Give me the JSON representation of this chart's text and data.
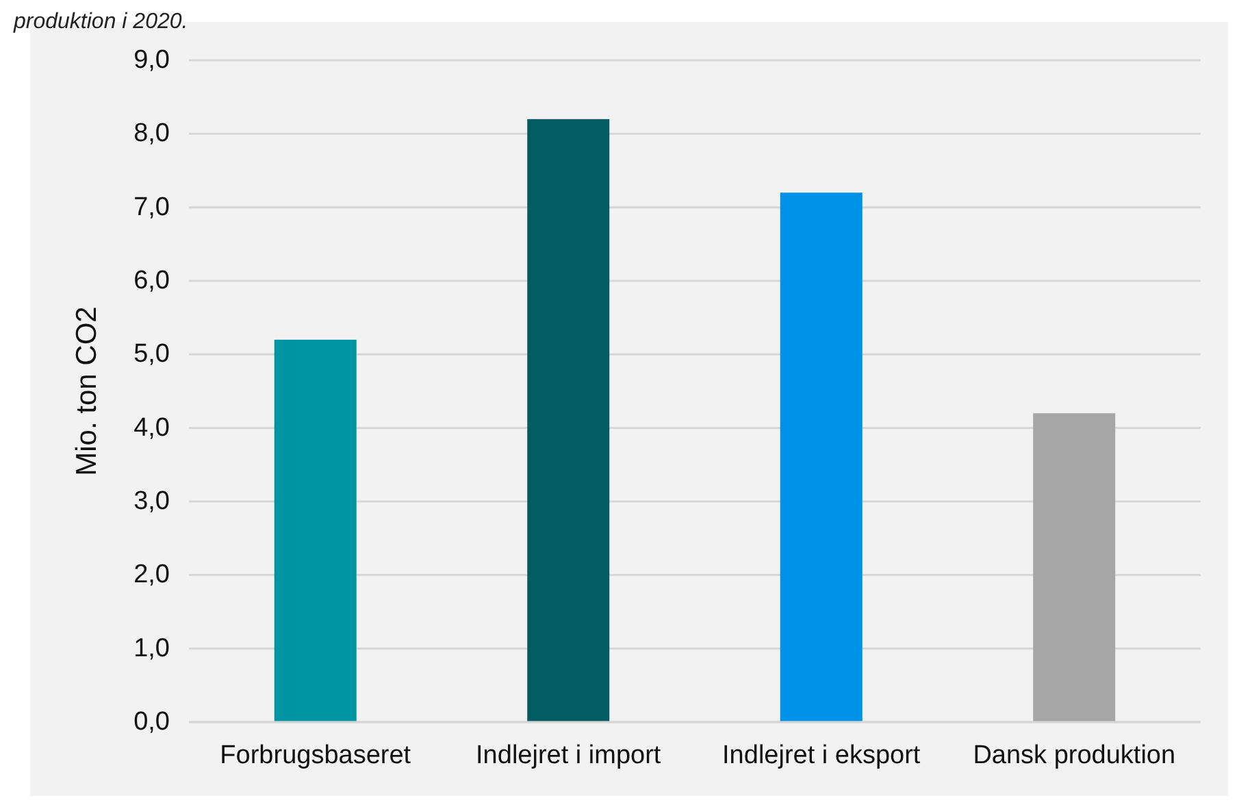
{
  "chart_data": {
    "type": "bar",
    "ylabel": "Mio. ton CO2",
    "categories": [
      "Forbrugsbaseret",
      "Indlejret i import",
      "Indlejret i eksport",
      "Dansk produktion"
    ],
    "values": [
      5.2,
      8.2,
      7.2,
      4.2
    ],
    "colors": [
      "#0095a3",
      "#045c63",
      "#0091e8",
      "#a6a6a6"
    ],
    "ylim": [
      0,
      9
    ],
    "yticks": [
      {
        "value": 0,
        "label": "0,0"
      },
      {
        "value": 1,
        "label": "1,0"
      },
      {
        "value": 2,
        "label": "2,0"
      },
      {
        "value": 3,
        "label": "3,0"
      },
      {
        "value": 4,
        "label": "4,0"
      },
      {
        "value": 5,
        "label": "5,0"
      },
      {
        "value": 6,
        "label": "6,0"
      },
      {
        "value": 7,
        "label": "7,0"
      },
      {
        "value": 8,
        "label": "8,0"
      },
      {
        "value": 9,
        "label": "9,0"
      }
    ],
    "grid": true,
    "annotations": [
      "produktion i 2020."
    ]
  }
}
